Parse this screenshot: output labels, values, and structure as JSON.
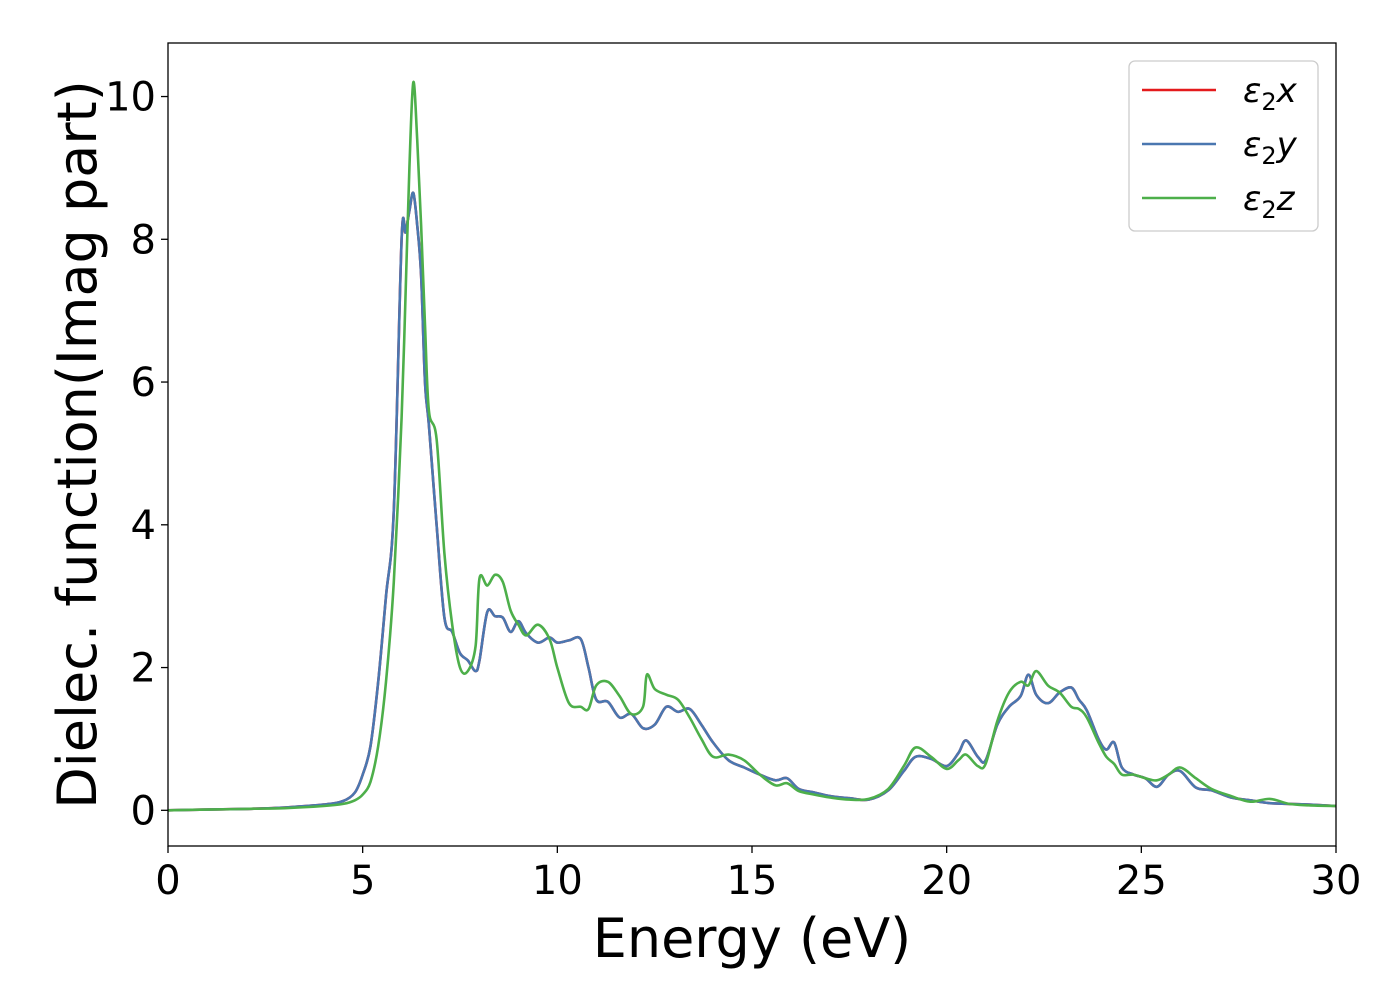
{
  "chart_data": {
    "type": "line",
    "xlabel": "Energy (eV)",
    "ylabel": "Dielec. function(Imag part)",
    "xlim": [
      0,
      30
    ],
    "ylim": [
      -0.5,
      10.75
    ],
    "xticks": [
      0,
      5,
      10,
      15,
      20,
      25,
      30
    ],
    "yticks": [
      0,
      2,
      4,
      6,
      8,
      10
    ],
    "xtick_labels": [
      "0",
      "5",
      "10",
      "15",
      "20",
      "25",
      "30"
    ],
    "ytick_labels": [
      "0",
      "2",
      "4",
      "6",
      "8",
      "10"
    ],
    "grid": false,
    "legend_position": "top-right",
    "series": [
      {
        "name": "ε₂x",
        "legend_main": "ε",
        "legend_sub": "2",
        "legend_tail": "x",
        "color": "#e41a1c",
        "x": [
          0,
          1,
          2,
          3,
          4,
          4.5,
          4.8,
          5.0,
          5.2,
          5.4,
          5.6,
          5.8,
          6.0,
          6.1,
          6.2,
          6.3,
          6.4,
          6.5,
          6.6,
          6.7,
          6.9,
          7.1,
          7.3,
          7.5,
          7.7,
          7.9,
          8.0,
          8.2,
          8.4,
          8.6,
          8.8,
          9.0,
          9.2,
          9.5,
          9.8,
          10.0,
          10.3,
          10.6,
          10.8,
          11.0,
          11.3,
          11.6,
          11.9,
          12.2,
          12.5,
          12.8,
          13.1,
          13.4,
          13.7,
          14.0,
          14.4,
          14.8,
          15.2,
          15.6,
          15.9,
          16.2,
          16.6,
          17.0,
          17.5,
          18.0,
          18.5,
          18.9,
          19.2,
          19.6,
          20.0,
          20.3,
          20.5,
          20.8,
          21.0,
          21.3,
          21.6,
          21.9,
          22.1,
          22.3,
          22.6,
          22.9,
          23.2,
          23.4,
          23.6,
          23.9,
          24.1,
          24.3,
          24.5,
          24.8,
          25.1,
          25.4,
          25.7,
          26.0,
          26.4,
          26.8,
          27.3,
          27.8,
          28.3,
          28.8,
          29.3,
          30.0
        ],
        "y": [
          0.0,
          0.01,
          0.02,
          0.04,
          0.08,
          0.13,
          0.25,
          0.5,
          0.9,
          1.8,
          3.0,
          4.2,
          8.0,
          8.1,
          8.4,
          8.65,
          8.2,
          7.5,
          6.0,
          5.4,
          4.0,
          2.7,
          2.5,
          2.2,
          2.1,
          1.95,
          2.1,
          2.78,
          2.72,
          2.7,
          2.5,
          2.65,
          2.48,
          2.35,
          2.42,
          2.35,
          2.38,
          2.4,
          2.0,
          1.55,
          1.52,
          1.3,
          1.35,
          1.15,
          1.2,
          1.45,
          1.38,
          1.42,
          1.2,
          0.95,
          0.7,
          0.6,
          0.5,
          0.42,
          0.45,
          0.3,
          0.25,
          0.2,
          0.17,
          0.15,
          0.28,
          0.55,
          0.75,
          0.72,
          0.62,
          0.8,
          0.98,
          0.75,
          0.7,
          1.2,
          1.45,
          1.6,
          1.9,
          1.62,
          1.5,
          1.65,
          1.72,
          1.55,
          1.4,
          1.0,
          0.85,
          0.95,
          0.6,
          0.5,
          0.45,
          0.33,
          0.5,
          0.55,
          0.32,
          0.28,
          0.18,
          0.14,
          0.1,
          0.09,
          0.08,
          0.06
        ]
      },
      {
        "name": "ε₂y",
        "legend_main": "ε",
        "legend_sub": "2",
        "legend_tail": "y",
        "color": "#4a77b0",
        "x": [
          0,
          1,
          2,
          3,
          4,
          4.5,
          4.8,
          5.0,
          5.2,
          5.4,
          5.6,
          5.8,
          6.0,
          6.1,
          6.2,
          6.3,
          6.4,
          6.5,
          6.6,
          6.7,
          6.9,
          7.1,
          7.3,
          7.5,
          7.7,
          7.9,
          8.0,
          8.2,
          8.4,
          8.6,
          8.8,
          9.0,
          9.2,
          9.5,
          9.8,
          10.0,
          10.3,
          10.6,
          10.8,
          11.0,
          11.3,
          11.6,
          11.9,
          12.2,
          12.5,
          12.8,
          13.1,
          13.4,
          13.7,
          14.0,
          14.4,
          14.8,
          15.2,
          15.6,
          15.9,
          16.2,
          16.6,
          17.0,
          17.5,
          18.0,
          18.5,
          18.9,
          19.2,
          19.6,
          20.0,
          20.3,
          20.5,
          20.8,
          21.0,
          21.3,
          21.6,
          21.9,
          22.1,
          22.3,
          22.6,
          22.9,
          23.2,
          23.4,
          23.6,
          23.9,
          24.1,
          24.3,
          24.5,
          24.8,
          25.1,
          25.4,
          25.7,
          26.0,
          26.4,
          26.8,
          27.3,
          27.8,
          28.3,
          28.8,
          29.3,
          30.0
        ],
        "y": [
          0.0,
          0.01,
          0.02,
          0.04,
          0.08,
          0.13,
          0.25,
          0.5,
          0.9,
          1.8,
          3.0,
          4.2,
          8.0,
          8.1,
          8.4,
          8.65,
          8.2,
          7.5,
          6.0,
          5.4,
          4.0,
          2.7,
          2.5,
          2.2,
          2.1,
          1.95,
          2.1,
          2.78,
          2.72,
          2.7,
          2.5,
          2.65,
          2.48,
          2.35,
          2.42,
          2.35,
          2.38,
          2.4,
          2.0,
          1.55,
          1.52,
          1.3,
          1.35,
          1.15,
          1.2,
          1.45,
          1.38,
          1.42,
          1.2,
          0.95,
          0.7,
          0.6,
          0.5,
          0.42,
          0.45,
          0.3,
          0.25,
          0.2,
          0.17,
          0.15,
          0.28,
          0.55,
          0.75,
          0.72,
          0.62,
          0.8,
          0.98,
          0.75,
          0.7,
          1.2,
          1.45,
          1.6,
          1.9,
          1.62,
          1.5,
          1.65,
          1.72,
          1.55,
          1.4,
          1.0,
          0.85,
          0.95,
          0.6,
          0.5,
          0.45,
          0.33,
          0.5,
          0.55,
          0.32,
          0.28,
          0.18,
          0.14,
          0.1,
          0.09,
          0.08,
          0.06
        ]
      },
      {
        "name": "ε₂z",
        "legend_main": "ε",
        "legend_sub": "2",
        "legend_tail": "z",
        "color": "#4daf4a",
        "x": [
          0,
          1,
          2,
          3,
          4,
          4.5,
          4.8,
          5.0,
          5.2,
          5.4,
          5.6,
          5.8,
          6.0,
          6.1,
          6.2,
          6.3,
          6.4,
          6.5,
          6.6,
          6.7,
          6.9,
          7.1,
          7.3,
          7.5,
          7.7,
          7.9,
          8.0,
          8.2,
          8.4,
          8.6,
          8.8,
          9.0,
          9.2,
          9.5,
          9.8,
          10.0,
          10.3,
          10.6,
          10.8,
          11.0,
          11.3,
          11.6,
          11.9,
          12.2,
          12.3,
          12.5,
          12.8,
          13.1,
          13.4,
          13.7,
          14.0,
          14.4,
          14.8,
          15.2,
          15.6,
          15.9,
          16.2,
          16.6,
          17.0,
          17.5,
          18.0,
          18.5,
          18.9,
          19.2,
          19.6,
          20.0,
          20.3,
          20.5,
          20.8,
          21.0,
          21.3,
          21.6,
          21.9,
          22.1,
          22.3,
          22.6,
          22.9,
          23.2,
          23.4,
          23.6,
          23.9,
          24.1,
          24.3,
          24.5,
          24.8,
          25.1,
          25.4,
          25.7,
          26.0,
          26.4,
          26.8,
          27.3,
          27.8,
          28.3,
          28.8,
          29.3,
          30.0
        ],
        "y": [
          0.0,
          0.01,
          0.02,
          0.03,
          0.06,
          0.09,
          0.14,
          0.22,
          0.4,
          0.9,
          1.8,
          3.2,
          5.5,
          7.2,
          9.0,
          10.2,
          9.4,
          8.2,
          6.8,
          5.6,
          5.2,
          3.6,
          2.6,
          2.0,
          1.95,
          2.3,
          3.25,
          3.15,
          3.3,
          3.2,
          2.8,
          2.6,
          2.45,
          2.6,
          2.4,
          2.0,
          1.5,
          1.45,
          1.42,
          1.75,
          1.8,
          1.6,
          1.35,
          1.45,
          1.9,
          1.7,
          1.62,
          1.55,
          1.3,
          1.0,
          0.75,
          0.78,
          0.7,
          0.5,
          0.35,
          0.38,
          0.27,
          0.22,
          0.18,
          0.15,
          0.16,
          0.3,
          0.62,
          0.88,
          0.75,
          0.58,
          0.7,
          0.78,
          0.62,
          0.65,
          1.25,
          1.65,
          1.8,
          1.75,
          1.95,
          1.75,
          1.65,
          1.45,
          1.42,
          1.3,
          0.95,
          0.75,
          0.65,
          0.5,
          0.5,
          0.45,
          0.42,
          0.5,
          0.6,
          0.45,
          0.3,
          0.2,
          0.12,
          0.16,
          0.09,
          0.07,
          0.06
        ]
      }
    ]
  }
}
